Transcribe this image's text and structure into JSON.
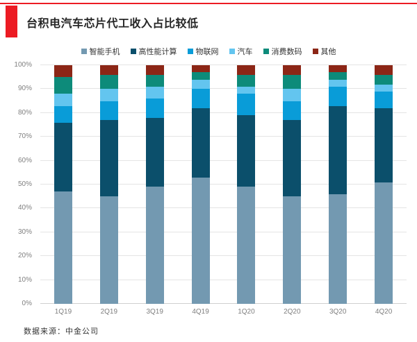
{
  "header": {
    "title": "台积电汽车芯片代工收入占比较低"
  },
  "footer": {
    "source": "数据来源：中金公司"
  },
  "colors": {
    "accent_red": "#EC1B23"
  },
  "chart_data": {
    "type": "bar",
    "stacked": true,
    "title": "台积电汽车芯片代工收入占比较低",
    "xlabel": "",
    "ylabel": "",
    "ylim": [
      0,
      100
    ],
    "grid": "horizontal",
    "legend_position": "top",
    "y_ticks": [
      "0%",
      "10%",
      "20%",
      "30%",
      "40%",
      "50%",
      "60%",
      "70%",
      "80%",
      "90%",
      "100%"
    ],
    "categories": [
      "1Q19",
      "2Q19",
      "3Q19",
      "4Q19",
      "1Q20",
      "2Q20",
      "3Q20",
      "4Q20"
    ],
    "series": [
      {
        "name": "智能手机",
        "color": "#7399B1",
        "values": [
          47,
          45,
          49,
          53,
          49,
          45,
          46,
          51
        ]
      },
      {
        "name": "高性能计算",
        "color": "#0B4F6B",
        "values": [
          29,
          32,
          29,
          29,
          30,
          32,
          37,
          31
        ]
      },
      {
        "name": "物联网",
        "color": "#099CD8",
        "values": [
          7,
          8,
          8,
          8,
          9,
          8,
          8,
          7
        ]
      },
      {
        "name": "汽车",
        "color": "#63C5EF",
        "values": [
          5,
          5,
          5,
          4,
          3,
          5,
          3,
          3
        ]
      },
      {
        "name": "消费数码",
        "color": "#0D8B7A",
        "values": [
          7,
          6,
          5,
          3,
          5,
          6,
          3,
          4
        ]
      },
      {
        "name": "其他",
        "color": "#8C2616",
        "values": [
          5,
          4,
          4,
          3,
          4,
          4,
          3,
          4
        ]
      }
    ]
  }
}
